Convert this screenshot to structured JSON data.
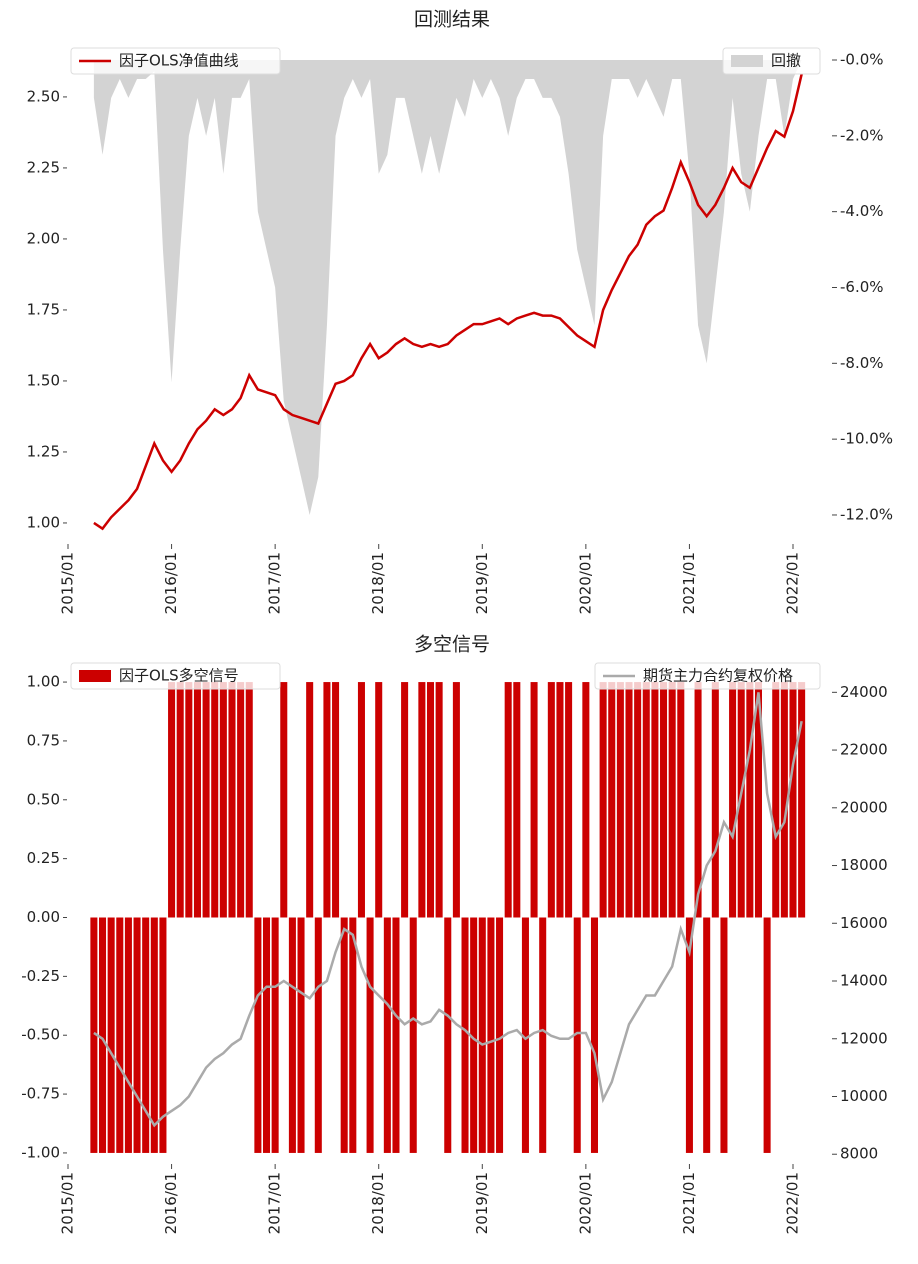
{
  "chart_data": [
    {
      "type": "combo",
      "title": "回测结果",
      "x": [
        "2015/04",
        "2015/05",
        "2015/06",
        "2015/07",
        "2015/08",
        "2015/09",
        "2015/10",
        "2015/11",
        "2015/12",
        "2016/01",
        "2016/02",
        "2016/03",
        "2016/04",
        "2016/05",
        "2016/06",
        "2016/07",
        "2016/08",
        "2016/09",
        "2016/10",
        "2016/11",
        "2016/12",
        "2017/01",
        "2017/02",
        "2017/03",
        "2017/04",
        "2017/05",
        "2017/06",
        "2017/07",
        "2017/08",
        "2017/09",
        "2017/10",
        "2017/11",
        "2017/12",
        "2018/01",
        "2018/02",
        "2018/03",
        "2018/04",
        "2018/05",
        "2018/06",
        "2018/07",
        "2018/08",
        "2018/09",
        "2018/10",
        "2018/11",
        "2018/12",
        "2019/01",
        "2019/02",
        "2019/03",
        "2019/04",
        "2019/05",
        "2019/06",
        "2019/07",
        "2019/08",
        "2019/09",
        "2019/10",
        "2019/11",
        "2019/12",
        "2020/01",
        "2020/02",
        "2020/03",
        "2020/04",
        "2020/05",
        "2020/06",
        "2020/07",
        "2020/08",
        "2020/09",
        "2020/10",
        "2020/11",
        "2020/12",
        "2021/01",
        "2021/02",
        "2021/03",
        "2021/04",
        "2021/05",
        "2021/06",
        "2021/07",
        "2021/08",
        "2021/09",
        "2021/10",
        "2021/11",
        "2021/12",
        "2022/01",
        "2022/02"
      ],
      "xticks": [
        "2015/01",
        "2016/01",
        "2017/01",
        "2018/01",
        "2019/01",
        "2020/01",
        "2021/01",
        "2022/01"
      ],
      "ylim": [
        0.94,
        2.63
      ],
      "yticks": [
        {
          "value": 1,
          "label": "1.00"
        },
        {
          "value": 1.25,
          "label": "1.25"
        },
        {
          "value": 1.5,
          "label": "1.50"
        },
        {
          "value": 1.75,
          "label": "1.75"
        },
        {
          "value": 2,
          "label": "2.00"
        },
        {
          "value": 2.25,
          "label": "2.25"
        },
        {
          "value": 2.5,
          "label": "2.50"
        }
      ],
      "y2lim": [
        -12.66,
        0
      ],
      "y2ticks": [
        {
          "value": 0,
          "label": "-0.0%"
        },
        {
          "value": -2,
          "label": "-2.0%"
        },
        {
          "value": -4,
          "label": "-4.0%"
        },
        {
          "value": -6,
          "label": "-6.0%"
        },
        {
          "value": -8,
          "label": "-8.0%"
        },
        {
          "value": -10,
          "label": "-10.0%"
        },
        {
          "value": -12,
          "label": "-12.0%"
        }
      ],
      "series": [
        {
          "name": "回撤",
          "type": "area",
          "axis": "y2",
          "color": "#d3d3d3",
          "legend": "upper right",
          "values": [
            -1,
            -2.5,
            -1,
            -0.5,
            -1,
            -0.5,
            -0.5,
            -0.3,
            -5,
            -8.5,
            -5,
            -2,
            -1,
            -2,
            -1,
            -3,
            -1,
            -1,
            -0.5,
            -4,
            -5,
            -6,
            -9,
            -10,
            -11,
            -12,
            -11,
            -7,
            -2,
            -1,
            -0.5,
            -1,
            -0.5,
            -3,
            -2.5,
            -1,
            -1,
            -2,
            -3,
            -2,
            -3,
            -2,
            -1,
            -1.5,
            -0.5,
            -1,
            -0.5,
            -1,
            -2,
            -1,
            -0.5,
            -0.5,
            -1,
            -1,
            -1.5,
            -3,
            -5,
            -6,
            -7,
            -2,
            -0.5,
            -0.5,
            -0.5,
            -1,
            -0.5,
            -1,
            -1.5,
            -0.5,
            -0.5,
            -3,
            -7,
            -8,
            -6,
            -4,
            -1,
            -3,
            -4,
            -2,
            -0.5,
            -0.5,
            -2,
            -0.5,
            0
          ]
        },
        {
          "name": "因子OLS净值曲线",
          "type": "line",
          "color": "#cc0000",
          "legend": "upper left",
          "values": [
            1.0,
            0.98,
            1.02,
            1.05,
            1.08,
            1.12,
            1.2,
            1.28,
            1.22,
            1.18,
            1.22,
            1.28,
            1.33,
            1.36,
            1.4,
            1.38,
            1.4,
            1.44,
            1.52,
            1.47,
            1.46,
            1.45,
            1.4,
            1.38,
            1.37,
            1.36,
            1.35,
            1.42,
            1.49,
            1.5,
            1.52,
            1.58,
            1.63,
            1.58,
            1.6,
            1.63,
            1.65,
            1.63,
            1.62,
            1.63,
            1.62,
            1.63,
            1.66,
            1.68,
            1.7,
            1.7,
            1.71,
            1.72,
            1.7,
            1.72,
            1.73,
            1.74,
            1.73,
            1.73,
            1.72,
            1.69,
            1.66,
            1.64,
            1.62,
            1.75,
            1.82,
            1.88,
            1.94,
            1.98,
            2.05,
            2.08,
            2.1,
            2.18,
            2.27,
            2.2,
            2.12,
            2.08,
            2.12,
            2.18,
            2.25,
            2.2,
            2.18,
            2.25,
            2.32,
            2.38,
            2.36,
            2.45,
            2.58
          ]
        }
      ]
    },
    {
      "type": "combo",
      "title": "多空信号",
      "x": [
        "2015/04",
        "2015/05",
        "2015/06",
        "2015/07",
        "2015/08",
        "2015/09",
        "2015/10",
        "2015/11",
        "2015/12",
        "2016/01",
        "2016/02",
        "2016/03",
        "2016/04",
        "2016/05",
        "2016/06",
        "2016/07",
        "2016/08",
        "2016/09",
        "2016/10",
        "2016/11",
        "2016/12",
        "2017/01",
        "2017/02",
        "2017/03",
        "2017/04",
        "2017/05",
        "2017/06",
        "2017/07",
        "2017/08",
        "2017/09",
        "2017/10",
        "2017/11",
        "2017/12",
        "2018/01",
        "2018/02",
        "2018/03",
        "2018/04",
        "2018/05",
        "2018/06",
        "2018/07",
        "2018/08",
        "2018/09",
        "2018/10",
        "2018/11",
        "2018/12",
        "2019/01",
        "2019/02",
        "2019/03",
        "2019/04",
        "2019/05",
        "2019/06",
        "2019/07",
        "2019/08",
        "2019/09",
        "2019/10",
        "2019/11",
        "2019/12",
        "2020/01",
        "2020/02",
        "2020/03",
        "2020/04",
        "2020/05",
        "2020/06",
        "2020/07",
        "2020/08",
        "2020/09",
        "2020/10",
        "2020/11",
        "2020/12",
        "2021/01",
        "2021/02",
        "2021/03",
        "2021/04",
        "2021/05",
        "2021/06",
        "2021/07",
        "2021/08",
        "2021/09",
        "2021/10",
        "2021/11",
        "2021/12",
        "2022/01",
        "2022/02"
      ],
      "xticks": [
        "2015/01",
        "2016/01",
        "2017/01",
        "2018/01",
        "2019/01",
        "2020/01",
        "2021/01",
        "2022/01"
      ],
      "ylim": [
        -1.03,
        1.03
      ],
      "yticks": [
        {
          "value": -1,
          "label": "-1.00"
        },
        {
          "value": -0.75,
          "label": "-0.75"
        },
        {
          "value": -0.5,
          "label": "-0.50"
        },
        {
          "value": -0.25,
          "label": "-0.25"
        },
        {
          "value": 0,
          "label": "0.00"
        },
        {
          "value": 0.25,
          "label": "0.25"
        },
        {
          "value": 0.5,
          "label": "0.50"
        },
        {
          "value": 0.75,
          "label": "0.75"
        },
        {
          "value": 1,
          "label": "1.00"
        }
      ],
      "y2lim": [
        7800,
        24600
      ],
      "y2ticks": [
        8000,
        10000,
        12000,
        14000,
        16000,
        18000,
        20000,
        22000,
        24000
      ],
      "series": [
        {
          "name": "因子OLS多空信号",
          "type": "bar",
          "color": "#cc0000",
          "legend": "upper left",
          "values": [
            -1,
            -1,
            -1,
            -1,
            -1,
            -1,
            -1,
            -1,
            -1,
            1,
            1,
            1,
            1,
            1,
            1,
            1,
            1,
            1,
            1,
            -1,
            -1,
            -1,
            1,
            -1,
            -1,
            1,
            -1,
            1,
            1,
            -1,
            -1,
            1,
            -1,
            1,
            -1,
            -1,
            1,
            -1,
            1,
            1,
            1,
            -1,
            1,
            -1,
            -1,
            -1,
            -1,
            -1,
            1,
            1,
            -1,
            1,
            -1,
            1,
            1,
            1,
            -1,
            1,
            -1,
            1,
            1,
            1,
            1,
            1,
            1,
            1,
            1,
            1,
            1,
            -1,
            1,
            -1,
            1,
            -1,
            1,
            1,
            1,
            1,
            -1,
            1,
            1,
            1,
            1
          ]
        },
        {
          "name": "期货主力合约复权价格",
          "type": "line",
          "axis": "y2",
          "color": "#aaaaaa",
          "legend": "upper right",
          "values": [
            12200,
            12000,
            11500,
            11000,
            10500,
            10000,
            9500,
            9000,
            9300,
            9500,
            9700,
            10000,
            10500,
            11000,
            11300,
            11500,
            11800,
            12000,
            12800,
            13500,
            13800,
            13800,
            14000,
            13800,
            13600,
            13400,
            13800,
            14000,
            15000,
            15800,
            15600,
            14500,
            13800,
            13500,
            13200,
            12800,
            12500,
            12700,
            12500,
            12600,
            13000,
            12800,
            12500,
            12300,
            12000,
            11800,
            11900,
            12000,
            12200,
            12300,
            12000,
            12200,
            12300,
            12100,
            12000,
            12000,
            12200,
            12200,
            11500,
            9900,
            10500,
            11500,
            12500,
            13000,
            13500,
            13500,
            14000,
            14500,
            15800,
            15000,
            17000,
            18000,
            18500,
            19500,
            19000,
            20500,
            22000,
            24000,
            20500,
            19000,
            19500,
            21500,
            23000
          ]
        }
      ]
    }
  ]
}
